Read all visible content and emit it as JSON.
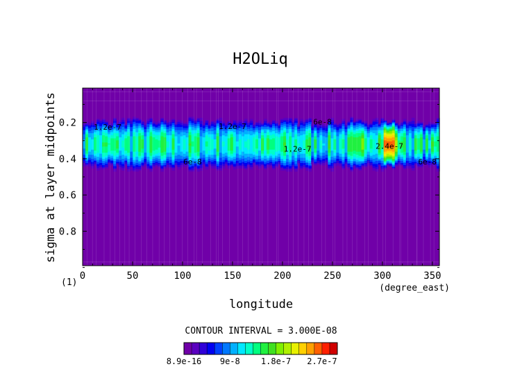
{
  "chart_data": {
    "type": "heatmap",
    "title": "H2OLiq",
    "xlabel": "longitude",
    "ylabel": "sigma at layer midpoints",
    "x_units": "(degree_east)",
    "corner_label": "(1)",
    "xlim": [
      0,
      357
    ],
    "ylim": [
      0.99,
      0.01
    ],
    "x_ticks": [
      "0",
      "50",
      "100",
      "150",
      "200",
      "250",
      "300",
      "350"
    ],
    "x_tick_values": [
      0,
      50,
      100,
      150,
      200,
      250,
      300,
      350
    ],
    "y_ticks": [
      "0.2",
      "0.4",
      "0.6",
      "0.8"
    ],
    "y_tick_values": [
      0.2,
      0.4,
      0.6,
      0.8
    ],
    "contour_interval_label": "CONTOUR INTERVAL = 3.000E-08",
    "contour_labels": [
      {
        "text": "1.2e-7",
        "lon": 25,
        "sigma": 0.225
      },
      {
        "text": "1.2e-7",
        "lon": 150,
        "sigma": 0.22
      },
      {
        "text": "1.2e-7",
        "lon": 215,
        "sigma": 0.345
      },
      {
        "text": "6e-8",
        "lon": 240,
        "sigma": 0.195
      },
      {
        "text": "6e-8",
        "lon": 110,
        "sigma": 0.415
      },
      {
        "text": "6e-8",
        "lon": 345,
        "sigma": 0.415
      },
      {
        "text": "2.4e-7",
        "lon": 307,
        "sigma": 0.33
      }
    ],
    "colorbar": {
      "tick_labels": [
        "8.9e-16",
        "9e-8",
        "1.8e-7",
        "2.7e-7"
      ],
      "tick_values": [
        8.9e-16,
        9e-08,
        1.8e-07,
        2.7e-07
      ],
      "levels": [
        0,
        1.5e-08,
        3e-08,
        4.5e-08,
        6e-08,
        7.5e-08,
        9e-08,
        1.05e-07,
        1.2e-07,
        1.35e-07,
        1.5e-07,
        1.65e-07,
        1.8e-07,
        1.95e-07,
        2.1e-07,
        2.25e-07,
        2.4e-07,
        2.55e-07,
        2.7e-07,
        2.85e-07,
        3e-07
      ],
      "colors": [
        "#7000a8",
        "#5a00c0",
        "#3000d8",
        "#0000f0",
        "#0040ff",
        "#0078ff",
        "#00b0ff",
        "#00e8ff",
        "#00ffc8",
        "#00ff80",
        "#20f040",
        "#40e020",
        "#80f000",
        "#b0f000",
        "#e8f000",
        "#ffd000",
        "#ffa000",
        "#ff6000",
        "#ff2000",
        "#d00000"
      ]
    },
    "description_data": {
      "background_value": 8.9e-16,
      "band_sigma_range": [
        0.17,
        0.44
      ],
      "band_peak_sigma": 0.32,
      "max_lon": 307,
      "max_value": 2.6e-07
    }
  }
}
